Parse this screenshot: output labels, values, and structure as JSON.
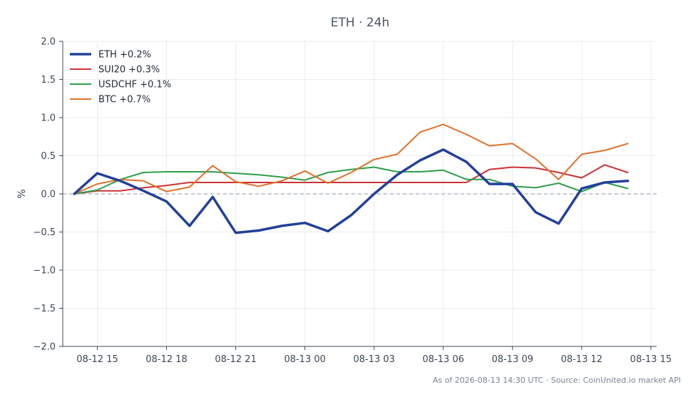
{
  "chart_data": {
    "type": "line",
    "title": "ETH · 24h",
    "ylabel": "%",
    "xlabel": "",
    "ylim": [
      -2.0,
      2.0
    ],
    "yticks": [
      -2.0,
      -1.5,
      -1.0,
      -0.5,
      0.0,
      0.5,
      1.0,
      1.5,
      2.0
    ],
    "ytick_labels": [
      "−2.0",
      "−1.5",
      "−1.0",
      "−0.5",
      "0.0",
      "0.5",
      "1.0",
      "1.5",
      "2.0"
    ],
    "xlim": [
      "2026-08-12 13:30",
      "2026-08-13 15:15"
    ],
    "xticks": [
      "2026-08-12 15:00",
      "2026-08-12 18:00",
      "2026-08-12 21:00",
      "2026-08-13 00:00",
      "2026-08-13 03:00",
      "2026-08-13 06:00",
      "2026-08-13 09:00",
      "2026-08-13 12:00",
      "2026-08-13 15:00"
    ],
    "xtick_labels": [
      "08-12 15",
      "08-12 18",
      "08-12 21",
      "08-13 00",
      "08-13 03",
      "08-13 06",
      "08-13 09",
      "08-13 12",
      "08-13 15"
    ],
    "x": [
      "2026-08-12 14:00",
      "2026-08-12 15:00",
      "2026-08-12 16:00",
      "2026-08-12 17:00",
      "2026-08-12 18:00",
      "2026-08-12 19:00",
      "2026-08-12 20:00",
      "2026-08-12 21:00",
      "2026-08-12 22:00",
      "2026-08-12 23:00",
      "2026-08-13 00:00",
      "2026-08-13 01:00",
      "2026-08-13 02:00",
      "2026-08-13 03:00",
      "2026-08-13 04:00",
      "2026-08-13 05:00",
      "2026-08-13 06:00",
      "2026-08-13 07:00",
      "2026-08-13 08:00",
      "2026-08-13 09:00",
      "2026-08-13 10:00",
      "2026-08-13 11:00",
      "2026-08-13 12:00",
      "2026-08-13 13:00",
      "2026-08-13 14:00"
    ],
    "grid": true,
    "legend_position": "top-left",
    "reference_line": 0.0,
    "series": [
      {
        "name": "ETH +0.2%",
        "color": "#22409a",
        "values": [
          0.0,
          0.27,
          0.17,
          0.04,
          -0.1,
          -0.42,
          -0.04,
          -0.51,
          -0.48,
          -0.42,
          -0.38,
          -0.49,
          -0.28,
          0.0,
          0.25,
          0.44,
          0.58,
          0.42,
          0.13,
          0.13,
          -0.24,
          -0.39,
          0.07,
          0.15,
          0.17
        ]
      },
      {
        "name": "SUI20 +0.3%",
        "color": "#cc3333",
        "values": [
          0.0,
          0.04,
          0.04,
          0.08,
          0.11,
          0.15,
          0.15,
          0.15,
          0.15,
          0.15,
          0.15,
          0.15,
          0.15,
          0.15,
          0.15,
          0.15,
          0.15,
          0.15,
          0.32,
          0.35,
          0.34,
          0.28,
          0.21,
          0.38,
          0.28
        ]
      },
      {
        "name": "USDCHF +0.1%",
        "color": "#2e9e4a",
        "values": [
          0.0,
          0.05,
          0.19,
          0.28,
          0.29,
          0.29,
          0.29,
          0.27,
          0.25,
          0.22,
          0.18,
          0.28,
          0.32,
          0.35,
          0.29,
          0.29,
          0.31,
          0.19,
          0.19,
          0.1,
          0.08,
          0.14,
          0.03,
          0.15,
          0.07
        ]
      },
      {
        "name": "BTC +0.7%",
        "color": "#e0702a",
        "values": [
          0.0,
          0.13,
          0.19,
          0.17,
          0.03,
          0.09,
          0.37,
          0.16,
          0.1,
          0.17,
          0.3,
          0.14,
          0.28,
          0.45,
          0.52,
          0.81,
          0.91,
          0.78,
          0.63,
          0.66,
          0.46,
          0.19,
          0.52,
          0.57,
          0.66
        ]
      }
    ],
    "footer": "As of 2026-08-13 14:30 UTC · Source: CoinUnited.io market API"
  }
}
